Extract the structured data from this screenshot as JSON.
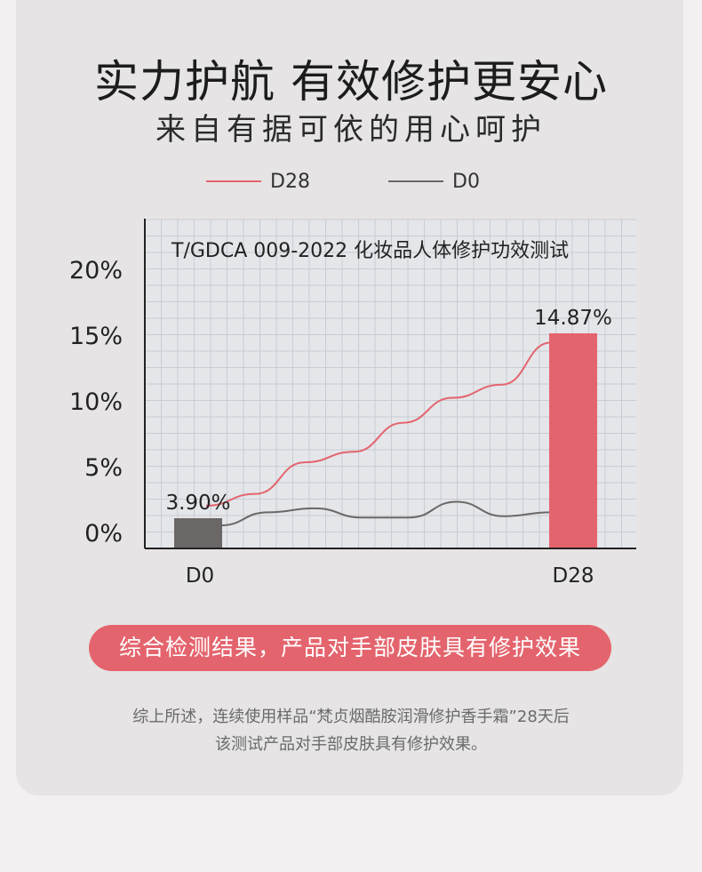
{
  "header": {
    "title": "实力护航 有效修护更安心",
    "subtitle": "来自有据可依的用心呵护"
  },
  "colors": {
    "d28": "#e4646d",
    "d0": "#6b6767",
    "grid_bg": "#e4e6ea",
    "grid_line": "#c9ccd3"
  },
  "chart_data": {
    "type": "bar",
    "title": "T/GDCA 009-2022 化妆品人体修护功效测试",
    "categories": [
      "D0",
      "D28"
    ],
    "series": [
      {
        "name": "D0",
        "values": [
          3.9,
          null
        ],
        "color": "#6b6767"
      },
      {
        "name": "D28",
        "values": [
          null,
          14.87
        ],
        "color": "#e4646d"
      }
    ],
    "data_labels": [
      "3.90%",
      "14.87%"
    ],
    "ylim": [
      0,
      22
    ],
    "yticks": [
      0,
      5,
      10,
      15,
      20
    ],
    "ytick_labels": [
      "0%",
      "5%",
      "10%",
      "15%",
      "20%"
    ],
    "grid": true,
    "legend": "top-center",
    "decorative_lines": {
      "d28": [
        2.1,
        3.0,
        5.4,
        6.2,
        8.4,
        10.3,
        11.3,
        14.5
      ],
      "d0": [
        0.6,
        1.6,
        1.9,
        1.2,
        1.2,
        2.4,
        1.3,
        1.6
      ]
    }
  },
  "legend": {
    "d28_label": "D28",
    "d0_label": "D0"
  },
  "summary": {
    "pill_text": "综合检测结果，产品对手部皮肤具有修护效果",
    "description_line1": "综上所述，连续使用样品“梵贞烟酷胺润滑修护香手霜”28天后",
    "description_line2": "该测试产品对手部皮肤具有修护效果。"
  }
}
